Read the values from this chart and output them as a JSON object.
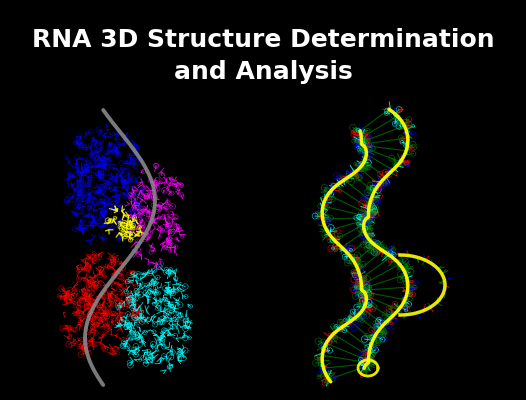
{
  "title_line1": "RNA 3D Structure Determination",
  "title_line2": "and Analysis",
  "title_fontsize": 18,
  "title_color": "#ffffff",
  "background_color": "#000000",
  "figsize": [
    5.26,
    4.0
  ],
  "dpi": 100
}
